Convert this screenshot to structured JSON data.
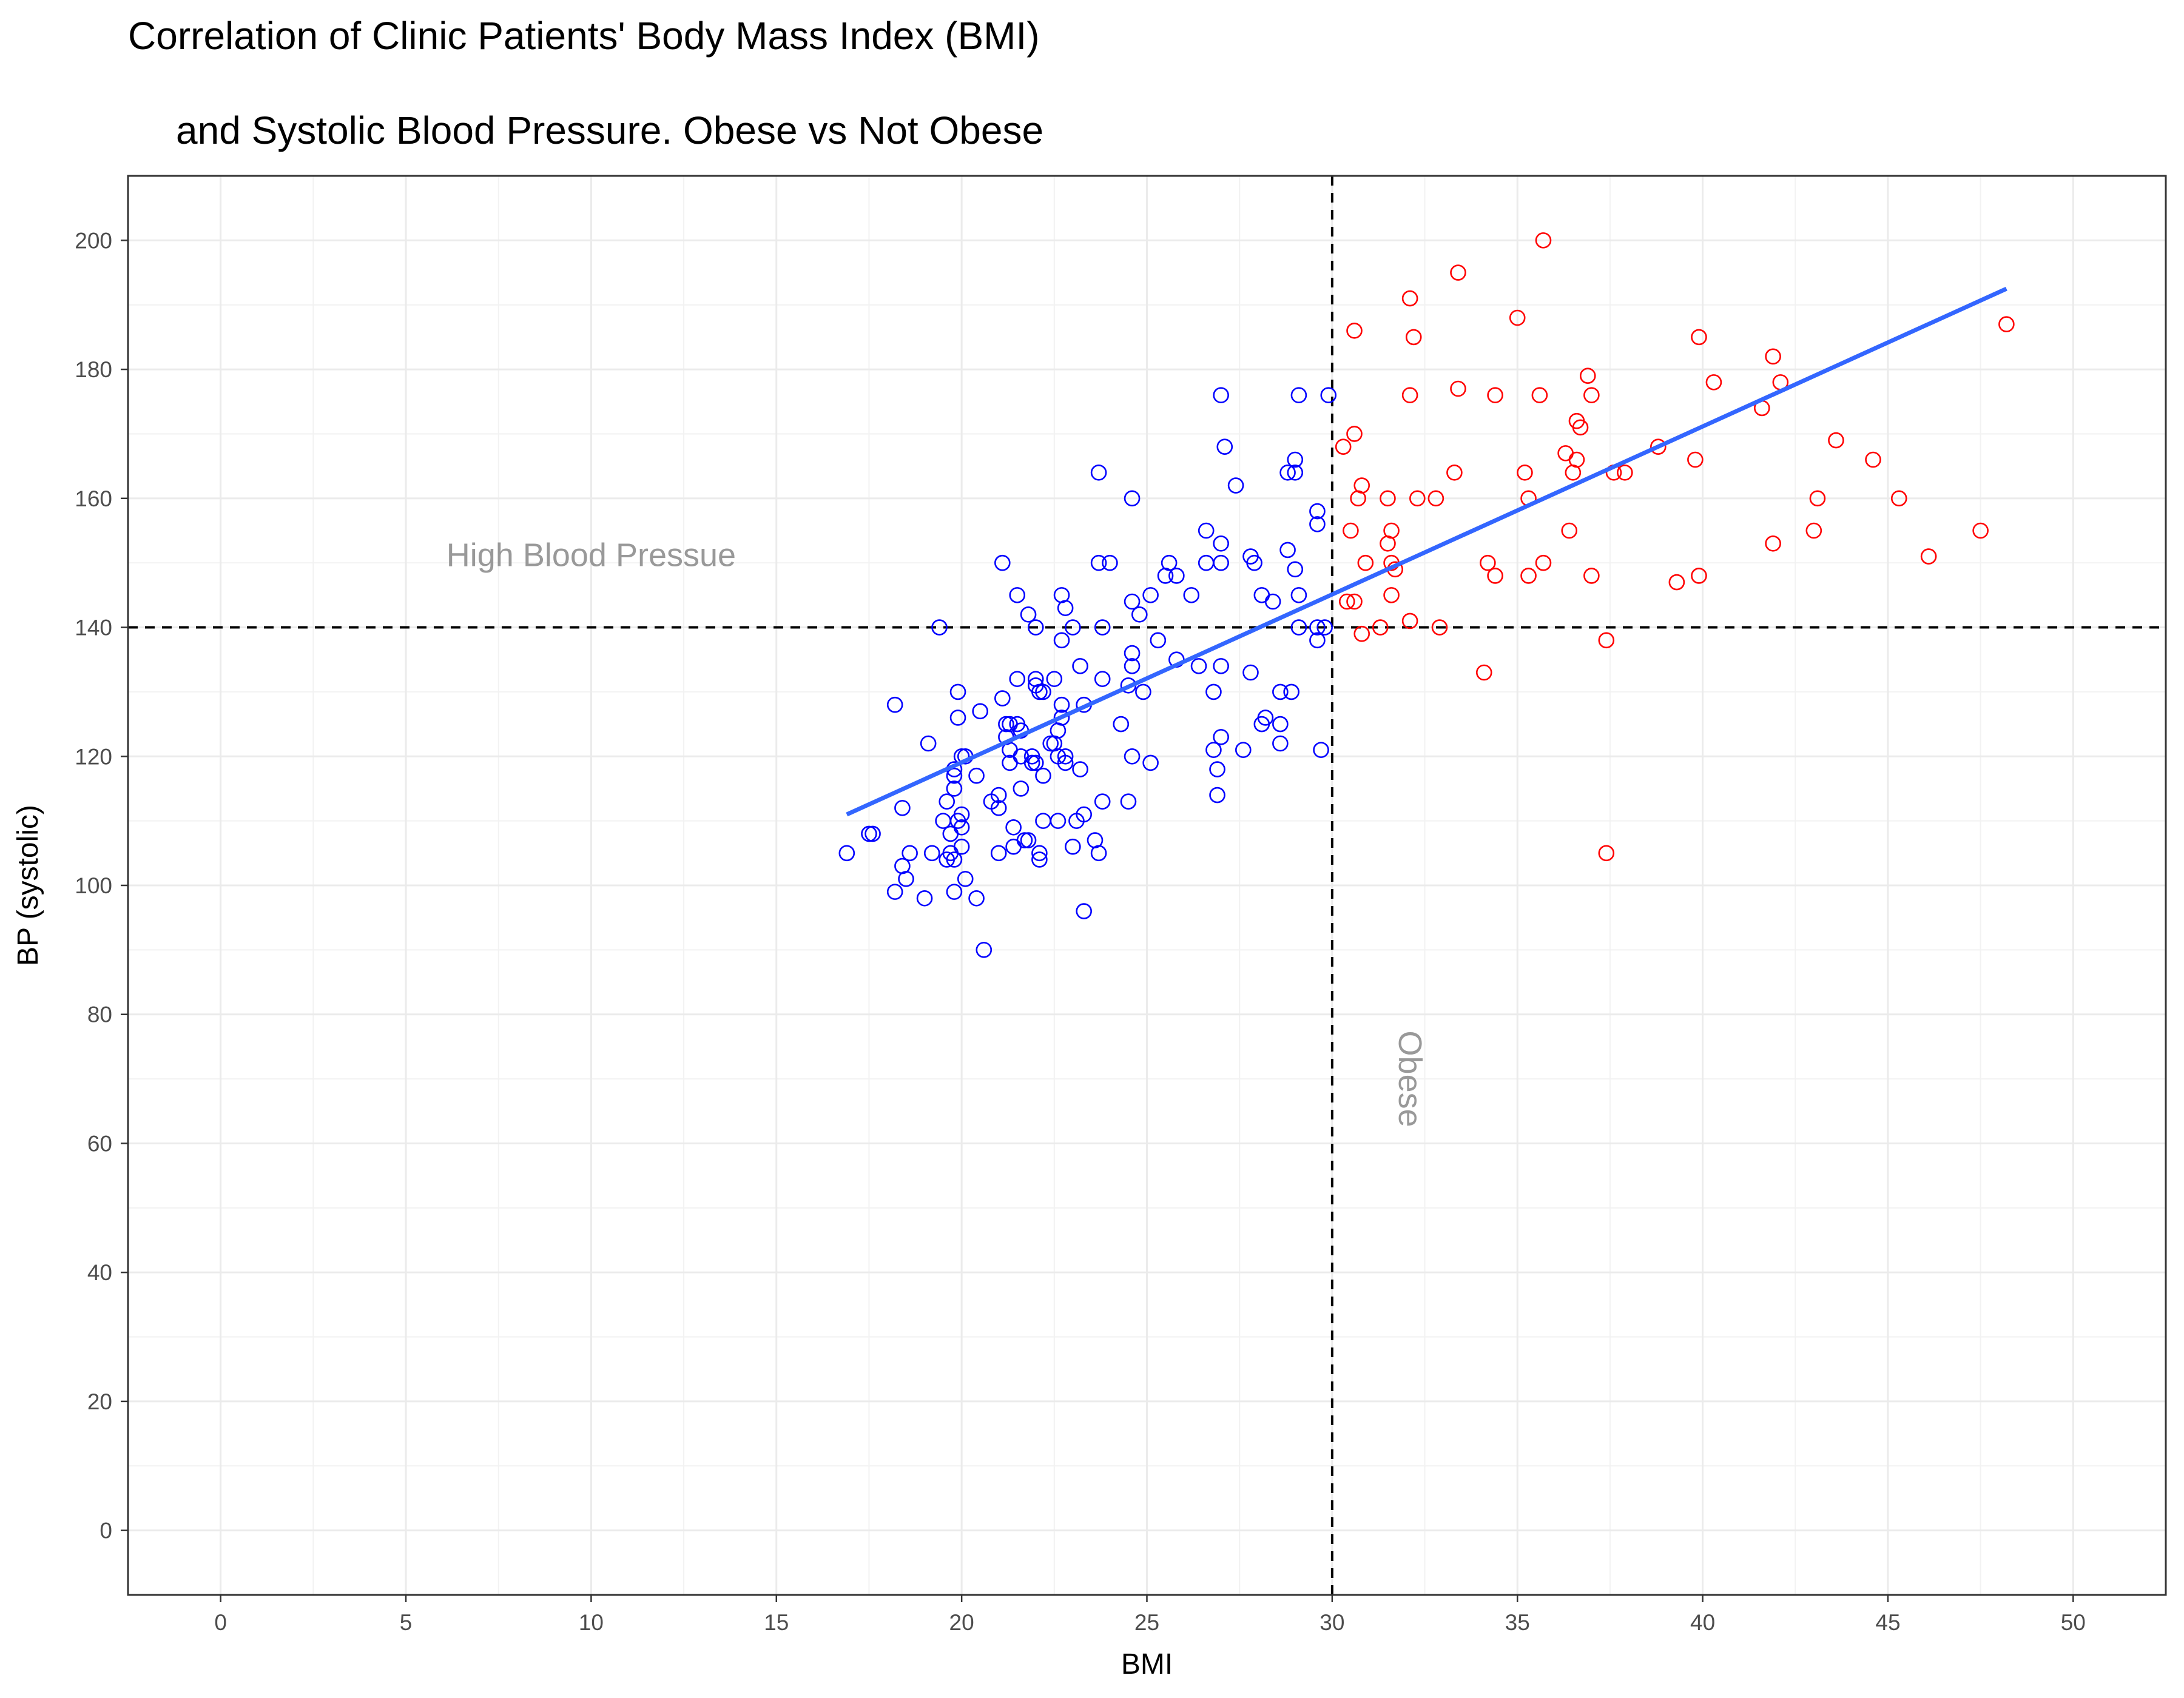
{
  "chart_data": {
    "type": "scatter",
    "title_line1": "Correlation of Clinic Patients' Body Mass Index (BMI)",
    "title_line2": "and Systolic Blood Pressure. Obese vs Not Obese",
    "xlabel": "BMI",
    "ylabel": "BP (systolic)",
    "xlim": [
      -2.5,
      52.5
    ],
    "ylim": [
      -10,
      210
    ],
    "x_ticks": [
      0,
      5,
      10,
      15,
      20,
      25,
      30,
      35,
      40,
      45,
      50
    ],
    "y_ticks": [
      0,
      20,
      40,
      60,
      80,
      100,
      120,
      140,
      160,
      180,
      200
    ],
    "grid": true,
    "threshold_lines": {
      "x": 30,
      "y": 140,
      "style": "dashed"
    },
    "annotations": [
      {
        "text": "High Blood Pressue",
        "x": 10,
        "y": 149.5,
        "rotation": 0
      },
      {
        "text": "Obese",
        "x": 31.8,
        "y": 70,
        "rotation": 90
      }
    ],
    "trend_line": {
      "x": [
        16.9,
        48.2
      ],
      "y": [
        111,
        192.5
      ],
      "color": "#3366ff"
    },
    "series": [
      {
        "group": "not_obese",
        "color": "#0000ff",
        "points": [
          [
            16.9,
            105
          ],
          [
            17.5,
            108
          ],
          [
            17.6,
            108
          ],
          [
            18.2,
            128
          ],
          [
            18.2,
            99
          ],
          [
            18.4,
            103
          ],
          [
            18.4,
            112
          ],
          [
            18.5,
            101
          ],
          [
            18.6,
            105
          ],
          [
            19.0,
            98
          ],
          [
            19.1,
            122
          ],
          [
            19.2,
            105
          ],
          [
            19.4,
            140
          ],
          [
            19.5,
            110
          ],
          [
            19.6,
            104
          ],
          [
            19.6,
            113
          ],
          [
            19.7,
            108
          ],
          [
            19.7,
            105
          ],
          [
            19.8,
            117
          ],
          [
            19.8,
            118
          ],
          [
            19.8,
            115
          ],
          [
            19.8,
            104
          ],
          [
            19.9,
            130
          ],
          [
            19.9,
            126
          ],
          [
            19.9,
            110
          ],
          [
            19.8,
            99
          ],
          [
            20.0,
            120
          ],
          [
            20.0,
            109
          ],
          [
            20.0,
            111
          ],
          [
            20.0,
            106
          ],
          [
            20.1,
            120
          ],
          [
            20.1,
            101
          ],
          [
            20.4,
            117
          ],
          [
            20.4,
            98
          ],
          [
            20.5,
            127
          ],
          [
            20.6,
            90
          ],
          [
            20.8,
            113
          ],
          [
            21.0,
            114
          ],
          [
            21.0,
            112
          ],
          [
            21.0,
            105
          ],
          [
            21.1,
            150
          ],
          [
            21.1,
            129
          ],
          [
            21.2,
            125
          ],
          [
            21.2,
            123
          ],
          [
            21.3,
            125
          ],
          [
            21.3,
            119
          ],
          [
            21.3,
            121
          ],
          [
            21.4,
            109
          ],
          [
            21.4,
            106
          ],
          [
            21.5,
            145
          ],
          [
            21.5,
            132
          ],
          [
            21.5,
            125
          ],
          [
            21.6,
            124
          ],
          [
            21.6,
            120
          ],
          [
            21.6,
            115
          ],
          [
            21.7,
            107
          ],
          [
            21.8,
            107
          ],
          [
            21.8,
            142
          ],
          [
            21.9,
            120
          ],
          [
            21.9,
            119
          ],
          [
            22.0,
            140
          ],
          [
            22.0,
            132
          ],
          [
            22.0,
            131
          ],
          [
            22.0,
            119
          ],
          [
            22.1,
            130
          ],
          [
            22.1,
            105
          ],
          [
            22.1,
            104
          ],
          [
            22.2,
            130
          ],
          [
            22.2,
            117
          ],
          [
            22.2,
            110
          ],
          [
            22.4,
            122
          ],
          [
            22.5,
            132
          ],
          [
            22.5,
            122
          ],
          [
            22.6,
            124
          ],
          [
            22.6,
            120
          ],
          [
            22.6,
            110
          ],
          [
            22.7,
            145
          ],
          [
            22.7,
            138
          ],
          [
            22.7,
            128
          ],
          [
            22.7,
            126
          ],
          [
            22.8,
            143
          ],
          [
            22.8,
            119
          ],
          [
            22.8,
            120
          ],
          [
            23.0,
            140
          ],
          [
            23.0,
            106
          ],
          [
            23.1,
            110
          ],
          [
            23.2,
            134
          ],
          [
            23.2,
            118
          ],
          [
            23.3,
            128
          ],
          [
            23.3,
            111
          ],
          [
            23.3,
            96
          ],
          [
            23.6,
            107
          ],
          [
            23.7,
            105
          ],
          [
            23.7,
            150
          ],
          [
            23.7,
            164
          ],
          [
            23.8,
            140
          ],
          [
            23.8,
            132
          ],
          [
            23.8,
            113
          ],
          [
            24.0,
            150
          ],
          [
            24.3,
            125
          ],
          [
            24.5,
            113
          ],
          [
            24.5,
            131
          ],
          [
            24.6,
            160
          ],
          [
            24.6,
            144
          ],
          [
            24.6,
            136
          ],
          [
            24.6,
            134
          ],
          [
            24.6,
            120
          ],
          [
            24.8,
            142
          ],
          [
            24.9,
            130
          ],
          [
            25.1,
            145
          ],
          [
            25.1,
            119
          ],
          [
            25.3,
            138
          ],
          [
            25.5,
            148
          ],
          [
            25.6,
            150
          ],
          [
            25.8,
            148
          ],
          [
            25.8,
            135
          ],
          [
            26.2,
            145
          ],
          [
            26.4,
            134
          ],
          [
            26.6,
            155
          ],
          [
            26.6,
            150
          ],
          [
            26.8,
            130
          ],
          [
            26.8,
            121
          ],
          [
            26.9,
            118
          ],
          [
            26.9,
            114
          ],
          [
            27.0,
            176
          ],
          [
            27.0,
            153
          ],
          [
            27.0,
            150
          ],
          [
            27.0,
            134
          ],
          [
            27.0,
            123
          ],
          [
            27.1,
            168
          ],
          [
            27.4,
            162
          ],
          [
            27.6,
            121
          ],
          [
            27.8,
            151
          ],
          [
            27.8,
            133
          ],
          [
            27.9,
            150
          ],
          [
            28.1,
            145
          ],
          [
            28.1,
            125
          ],
          [
            28.2,
            126
          ],
          [
            28.4,
            144
          ],
          [
            28.6,
            130
          ],
          [
            28.6,
            125
          ],
          [
            28.6,
            122
          ],
          [
            28.8,
            164
          ],
          [
            28.8,
            152
          ],
          [
            28.9,
            130
          ],
          [
            29.0,
            166
          ],
          [
            29.0,
            164
          ],
          [
            29.0,
            149
          ],
          [
            29.1,
            176
          ],
          [
            29.1,
            145
          ],
          [
            29.1,
            140
          ],
          [
            29.6,
            158
          ],
          [
            29.6,
            156
          ],
          [
            29.6,
            140
          ],
          [
            29.6,
            138
          ],
          [
            29.7,
            121
          ],
          [
            29.8,
            140
          ],
          [
            29.9,
            176
          ]
        ]
      },
      {
        "group": "obese",
        "color": "#ff0000",
        "points": [
          [
            30.3,
            168
          ],
          [
            30.4,
            144
          ],
          [
            30.5,
            155
          ],
          [
            30.6,
            186
          ],
          [
            30.6,
            170
          ],
          [
            30.6,
            144
          ],
          [
            30.7,
            160
          ],
          [
            30.8,
            162
          ],
          [
            30.8,
            139
          ],
          [
            30.9,
            150
          ],
          [
            31.3,
            140
          ],
          [
            31.5,
            160
          ],
          [
            31.5,
            153
          ],
          [
            31.6,
            155
          ],
          [
            31.6,
            150
          ],
          [
            31.6,
            145
          ],
          [
            31.7,
            149
          ],
          [
            32.1,
            191
          ],
          [
            32.1,
            176
          ],
          [
            32.1,
            141
          ],
          [
            32.2,
            185
          ],
          [
            32.3,
            160
          ],
          [
            32.8,
            160
          ],
          [
            32.9,
            140
          ],
          [
            33.3,
            164
          ],
          [
            33.4,
            195
          ],
          [
            33.4,
            177
          ],
          [
            34.1,
            133
          ],
          [
            34.2,
            150
          ],
          [
            34.4,
            176
          ],
          [
            34.4,
            148
          ],
          [
            35.0,
            188
          ],
          [
            35.2,
            164
          ],
          [
            35.3,
            160
          ],
          [
            35.3,
            148
          ],
          [
            35.6,
            176
          ],
          [
            35.7,
            150
          ],
          [
            35.7,
            200
          ],
          [
            36.3,
            167
          ],
          [
            36.4,
            155
          ],
          [
            36.5,
            164
          ],
          [
            36.6,
            172
          ],
          [
            36.6,
            166
          ],
          [
            36.7,
            171
          ],
          [
            36.9,
            179
          ],
          [
            37.0,
            176
          ],
          [
            37.0,
            148
          ],
          [
            37.4,
            138
          ],
          [
            37.4,
            105
          ],
          [
            37.6,
            164
          ],
          [
            37.9,
            164
          ],
          [
            38.8,
            168
          ],
          [
            39.3,
            147
          ],
          [
            39.8,
            166
          ],
          [
            39.9,
            185
          ],
          [
            39.9,
            148
          ],
          [
            40.3,
            178
          ],
          [
            41.6,
            174
          ],
          [
            41.9,
            153
          ],
          [
            41.9,
            182
          ],
          [
            42.1,
            178
          ],
          [
            43.0,
            155
          ],
          [
            43.1,
            160
          ],
          [
            43.6,
            169
          ],
          [
            44.6,
            166
          ],
          [
            45.3,
            160
          ],
          [
            46.1,
            151
          ],
          [
            47.5,
            155
          ],
          [
            48.2,
            187
          ]
        ]
      }
    ]
  }
}
